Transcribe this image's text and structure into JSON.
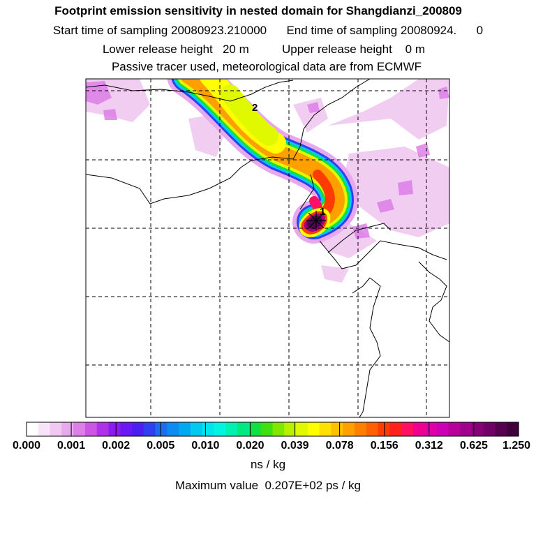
{
  "header": {
    "title": "Footprint emission sensitivity in nested domain for Shangdianzi_200809",
    "line2": "Start time of sampling 20080923.210000      End time of sampling 20080924.      0",
    "line3": "Lower release height   20 m          Upper release height    0 m",
    "line4": "Passive tracer used, meteorological data are from ECMWF"
  },
  "map": {
    "release_labels": [
      "2",
      "1"
    ],
    "colors": {
      "plume_core": "#4a0a4a",
      "coast": "#000000",
      "grid": "#000000"
    }
  },
  "colorbar": {
    "tick_labels": [
      "0.000",
      "0.001",
      "0.002",
      "0.005",
      "0.010",
      "0.020",
      "0.039",
      "0.078",
      "0.156",
      "0.312",
      "0.625",
      "1.250"
    ],
    "colors": [
      "#ffffff",
      "#f8e4f8",
      "#f0c8f0",
      "#e8a8ee",
      "#dd7fe8",
      "#cc55e6",
      "#b030ea",
      "#8a1cf0",
      "#6a18f4",
      "#4a20f2",
      "#3040f0",
      "#1c6cf0",
      "#0c8cf0",
      "#00aaf0",
      "#00c8f0",
      "#00e4ee",
      "#00f4e0",
      "#00f0b0",
      "#00e880",
      "#10e040",
      "#40e010",
      "#80e800",
      "#b8f000",
      "#e0f800",
      "#ffff00",
      "#ffe000",
      "#ffc000",
      "#ffa000",
      "#ff8000",
      "#ff6000",
      "#ff3c00",
      "#ff2020",
      "#ff1060",
      "#f00090",
      "#e000a8",
      "#cc00b4",
      "#b8009c",
      "#a0008a",
      "#880078",
      "#700066",
      "#580050",
      "#40003c"
    ],
    "units": "ns / kg",
    "max_value": "Maximum value  0.207E+02 ps / kg"
  }
}
